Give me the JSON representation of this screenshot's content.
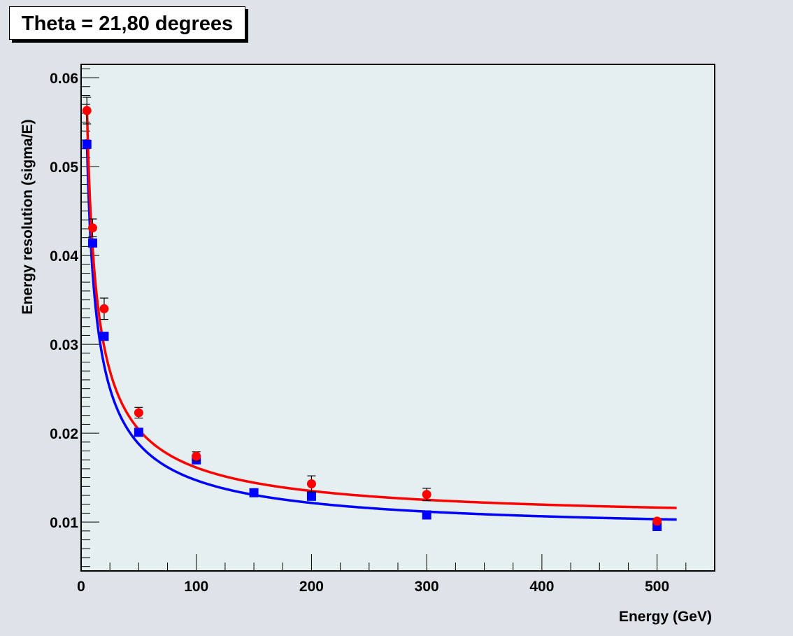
{
  "title": "Theta = 21,80 degrees",
  "chart_data": {
    "type": "scatter",
    "title": "Theta = 21,80 degrees",
    "xlabel": "Energy (GeV)",
    "ylabel": "Energy resolution (sigma/E)",
    "xlim": [
      0,
      550
    ],
    "ylim": [
      0.0045,
      0.0615
    ],
    "x_ticks": [
      0,
      100,
      200,
      300,
      400,
      500
    ],
    "y_ticks": [
      0.01,
      0.02,
      0.03,
      0.04,
      0.05,
      0.06
    ],
    "x_tick_labels": [
      "0",
      "100",
      "200",
      "300",
      "400",
      "500"
    ],
    "y_tick_labels": [
      "0.01",
      "0.02",
      "0.03",
      "0.04",
      "0.05",
      "0.06"
    ],
    "grid": false,
    "colors": {
      "plot_background": "#e6efef",
      "frame_background": "#dde3e9",
      "red": "#ff0000",
      "blue": "#0000ff"
    },
    "series": [
      {
        "color": "#ff0000",
        "marker": "circle",
        "x": [
          5,
          10,
          20,
          50,
          100,
          200,
          300,
          500
        ],
        "y": [
          0.0563,
          0.0431,
          0.034,
          0.0223,
          0.0174,
          0.0143,
          0.0131,
          0.0101
        ],
        "yerr": [
          0.0015,
          0.001,
          0.0012,
          0.0006,
          0.0005,
          0.0009,
          0.0007,
          0.0003
        ],
        "fit": {
          "function": "sqrt((a/sqrt(x))^2 + b^2)",
          "a": 0.125,
          "b": 0.0102,
          "x_range": [
            5,
            517
          ]
        }
      },
      {
        "color": "#0000ff",
        "marker": "square",
        "x": [
          5,
          10,
          20,
          50,
          100,
          150,
          200,
          300,
          500
        ],
        "y": [
          0.0525,
          0.0414,
          0.0309,
          0.0201,
          0.017,
          0.0133,
          0.0129,
          0.0108,
          0.0095
        ],
        "yerr": [
          0,
          0,
          0,
          0,
          0,
          0,
          0,
          0,
          0
        ],
        "fit": {
          "function": "sqrt((a/sqrt(x))^2 + b^2)",
          "a": 0.117,
          "b": 0.0089,
          "x_range": [
            5,
            517
          ]
        }
      }
    ]
  }
}
